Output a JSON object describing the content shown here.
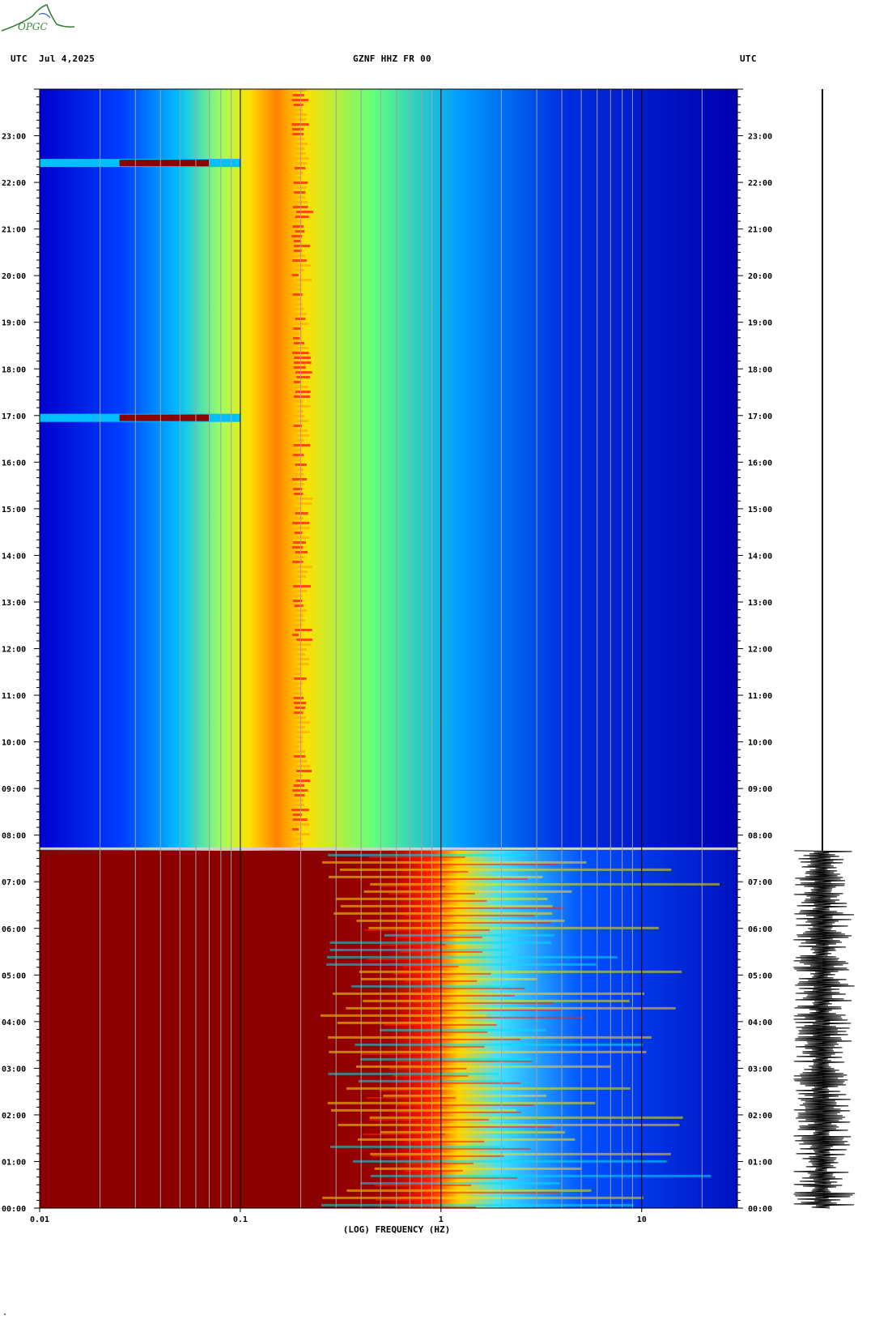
{
  "logo": {
    "text": "OPGC",
    "icon": "opgc-logo-icon"
  },
  "header": {
    "timezone_left": "UTC",
    "date": "Jul 4,2025",
    "station": "GZNF HHZ FR 00",
    "timezone_right": "UTC"
  },
  "chart_data": {
    "type": "heatmap",
    "title": "GZNF HHZ FR 00",
    "xlabel": "(LOG) FREQUENCY (HZ)",
    "ylabel": "UTC",
    "x_scale": "log",
    "xlim": [
      0.01,
      30
    ],
    "x_ticks": [
      "0.01",
      "0.1",
      "1",
      "10"
    ],
    "ylim": [
      "00:00",
      "24:00"
    ],
    "y_ticks": [
      "00:00",
      "01:00",
      "02:00",
      "03:00",
      "04:00",
      "05:00",
      "06:00",
      "07:00",
      "08:00",
      "09:00",
      "10:00",
      "11:00",
      "12:00",
      "13:00",
      "14:00",
      "15:00",
      "16:00",
      "17:00",
      "18:00",
      "19:00",
      "20:00",
      "21:00",
      "22:00",
      "23:00"
    ],
    "colormap": [
      "#00008b",
      "#0000ff",
      "#00bfff",
      "#ffff00",
      "#ff8c00",
      "#ff0000",
      "#8b0000"
    ],
    "regions": [
      {
        "from": "00:00",
        "to": "07:40",
        "description_level": "high energy broadband, saturated below 0.3 Hz"
      },
      {
        "from": "07:40",
        "to": "24:00",
        "description_level": "microseism band 0.15-0.35 Hz dominant"
      }
    ],
    "events": [
      {
        "time": "16:57",
        "freq_range": [
          0.01,
          0.1
        ]
      },
      {
        "time": "22:25",
        "freq_range": [
          0.01,
          0.1
        ]
      }
    ],
    "grid": true
  }
}
